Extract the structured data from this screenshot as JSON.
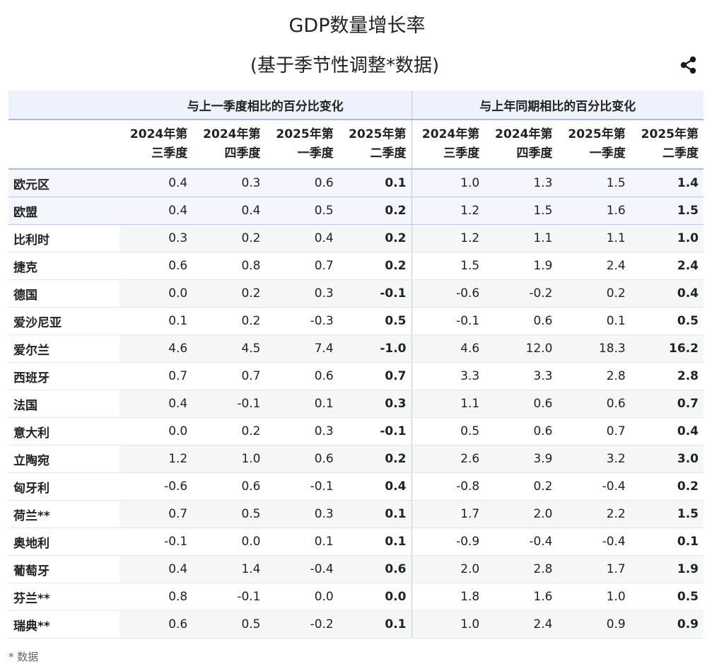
{
  "title": "GDP数量增长率",
  "subtitle": "(基于季节性调整*数据)",
  "group_headers": [
    "与上一季度相比的百分比变化",
    "与上年同期相比的百分比变化"
  ],
  "period_headers": [
    [
      "2024年第",
      "三季度"
    ],
    [
      "2024年第",
      "四季度"
    ],
    [
      "2025年第",
      "一季度"
    ],
    [
      "2025年第",
      "二季度"
    ],
    [
      "2024年第",
      "三季度"
    ],
    [
      "2024年第",
      "四季度"
    ],
    [
      "2025年第",
      "一季度"
    ],
    [
      "2025年第",
      "二季度"
    ]
  ],
  "rows": [
    {
      "country": "欧元区",
      "values": [
        "0.4",
        "0.3",
        "0.6",
        "0.1",
        "1.0",
        "1.3",
        "1.5",
        "1.4"
      ]
    },
    {
      "country": "欧盟",
      "values": [
        "0.4",
        "0.4",
        "0.5",
        "0.2",
        "1.2",
        "1.5",
        "1.6",
        "1.5"
      ]
    },
    {
      "country": "比利时",
      "values": [
        "0.3",
        "0.2",
        "0.4",
        "0.2",
        "1.2",
        "1.1",
        "1.1",
        "1.0"
      ]
    },
    {
      "country": "捷克",
      "values": [
        "0.6",
        "0.8",
        "0.7",
        "0.2",
        "1.5",
        "1.9",
        "2.4",
        "2.4"
      ]
    },
    {
      "country": "德国",
      "values": [
        "0.0",
        "0.2",
        "0.3",
        "-0.1",
        "-0.6",
        "-0.2",
        "0.2",
        "0.4"
      ]
    },
    {
      "country": "爱沙尼亚",
      "values": [
        "0.1",
        "0.2",
        "-0.3",
        "0.5",
        "-0.1",
        "0.6",
        "0.1",
        "0.5"
      ]
    },
    {
      "country": "爱尔兰",
      "values": [
        "4.6",
        "4.5",
        "7.4",
        "-1.0",
        "4.6",
        "12.0",
        "18.3",
        "16.2"
      ]
    },
    {
      "country": "西班牙",
      "values": [
        "0.7",
        "0.7",
        "0.6",
        "0.7",
        "3.3",
        "3.3",
        "2.8",
        "2.8"
      ]
    },
    {
      "country": "法国",
      "values": [
        "0.4",
        "-0.1",
        "0.1",
        "0.3",
        "1.1",
        "0.6",
        "0.6",
        "0.7"
      ]
    },
    {
      "country": "意大利",
      "values": [
        "0.0",
        "0.2",
        "0.3",
        "-0.1",
        "0.5",
        "0.6",
        "0.7",
        "0.4"
      ]
    },
    {
      "country": "立陶宛",
      "values": [
        "1.2",
        "1.0",
        "0.6",
        "0.2",
        "2.6",
        "3.9",
        "3.2",
        "3.0"
      ]
    },
    {
      "country": "匈牙利",
      "values": [
        "-0.6",
        "0.6",
        "-0.1",
        "0.4",
        "-0.8",
        "0.2",
        "-0.4",
        "0.2"
      ]
    },
    {
      "country": "荷兰**",
      "values": [
        "0.7",
        "0.5",
        "0.3",
        "0.1",
        "1.7",
        "2.0",
        "2.2",
        "1.5"
      ]
    },
    {
      "country": "奥地利",
      "values": [
        "-0.1",
        "0.0",
        "0.1",
        "0.1",
        "-0.9",
        "-0.4",
        "-0.4",
        "0.1"
      ]
    },
    {
      "country": "葡萄牙",
      "values": [
        "0.4",
        "1.4",
        "-0.4",
        "0.6",
        "2.0",
        "2.8",
        "1.7",
        "1.9"
      ]
    },
    {
      "country": "芬兰**",
      "values": [
        "0.8",
        "-0.1",
        "0.0",
        "0.0",
        "1.8",
        "1.6",
        "1.0",
        "0.5"
      ]
    },
    {
      "country": "瑞典**",
      "values": [
        "0.6",
        "0.5",
        "-0.2",
        "0.1",
        "1.0",
        "2.4",
        "0.9",
        "0.9"
      ]
    }
  ],
  "footnote": "* 数据",
  "icons": {
    "share": "share-icon"
  },
  "colors": {
    "header_bg": "#eef2fb",
    "header_rule": "#a9bde0",
    "zebra": "#f6f8f8"
  }
}
